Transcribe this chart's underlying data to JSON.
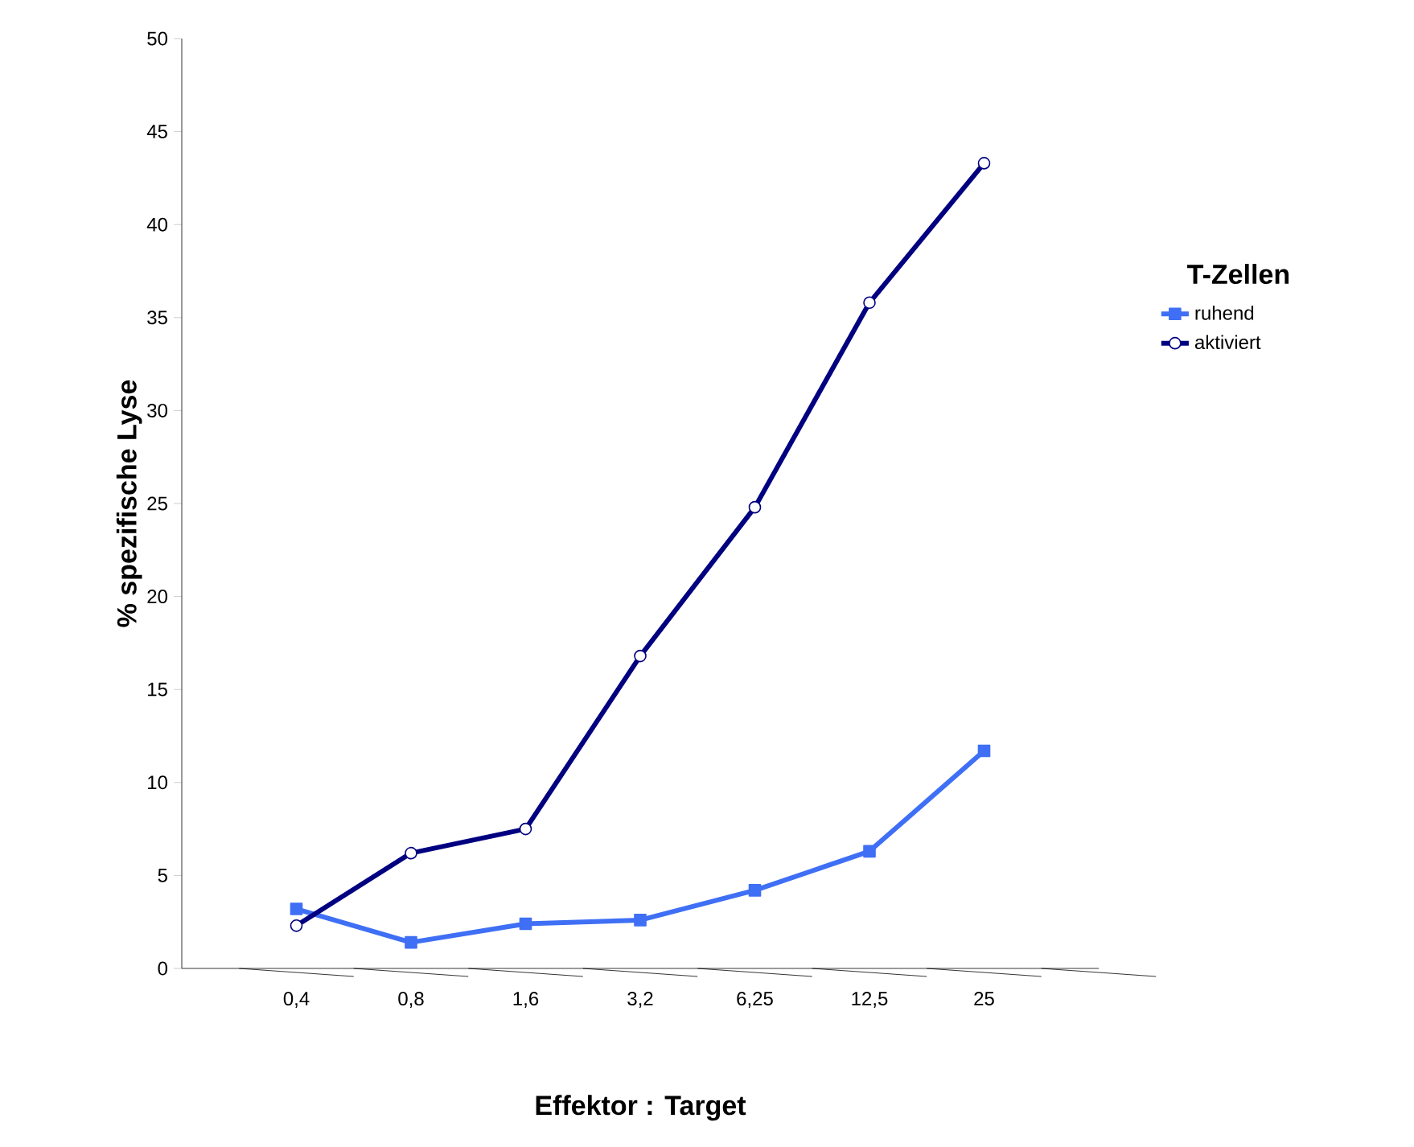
{
  "chart_data": {
    "type": "line",
    "xlabel": "Effektor : Target",
    "ylabel": "% spezifische Lyse",
    "legend_title": "T-Zellen",
    "legend": "right",
    "categories": [
      "0,4",
      "0,8",
      "1,6",
      "3,2",
      "6,25",
      "12,5",
      "25"
    ],
    "ylim": [
      0,
      50
    ],
    "yticks": [
      0,
      5,
      10,
      15,
      20,
      25,
      30,
      35,
      40,
      45,
      50
    ],
    "series": [
      {
        "name": "ruhend",
        "color": "#3f6ff5",
        "marker": "square",
        "values": [
          3.2,
          1.4,
          2.4,
          2.6,
          4.2,
          6.3,
          11.7
        ]
      },
      {
        "name": "aktiviert",
        "color": "#000080",
        "marker": "circle",
        "values": [
          2.3,
          6.2,
          7.5,
          16.8,
          24.8,
          35.8,
          43.3
        ]
      }
    ]
  }
}
